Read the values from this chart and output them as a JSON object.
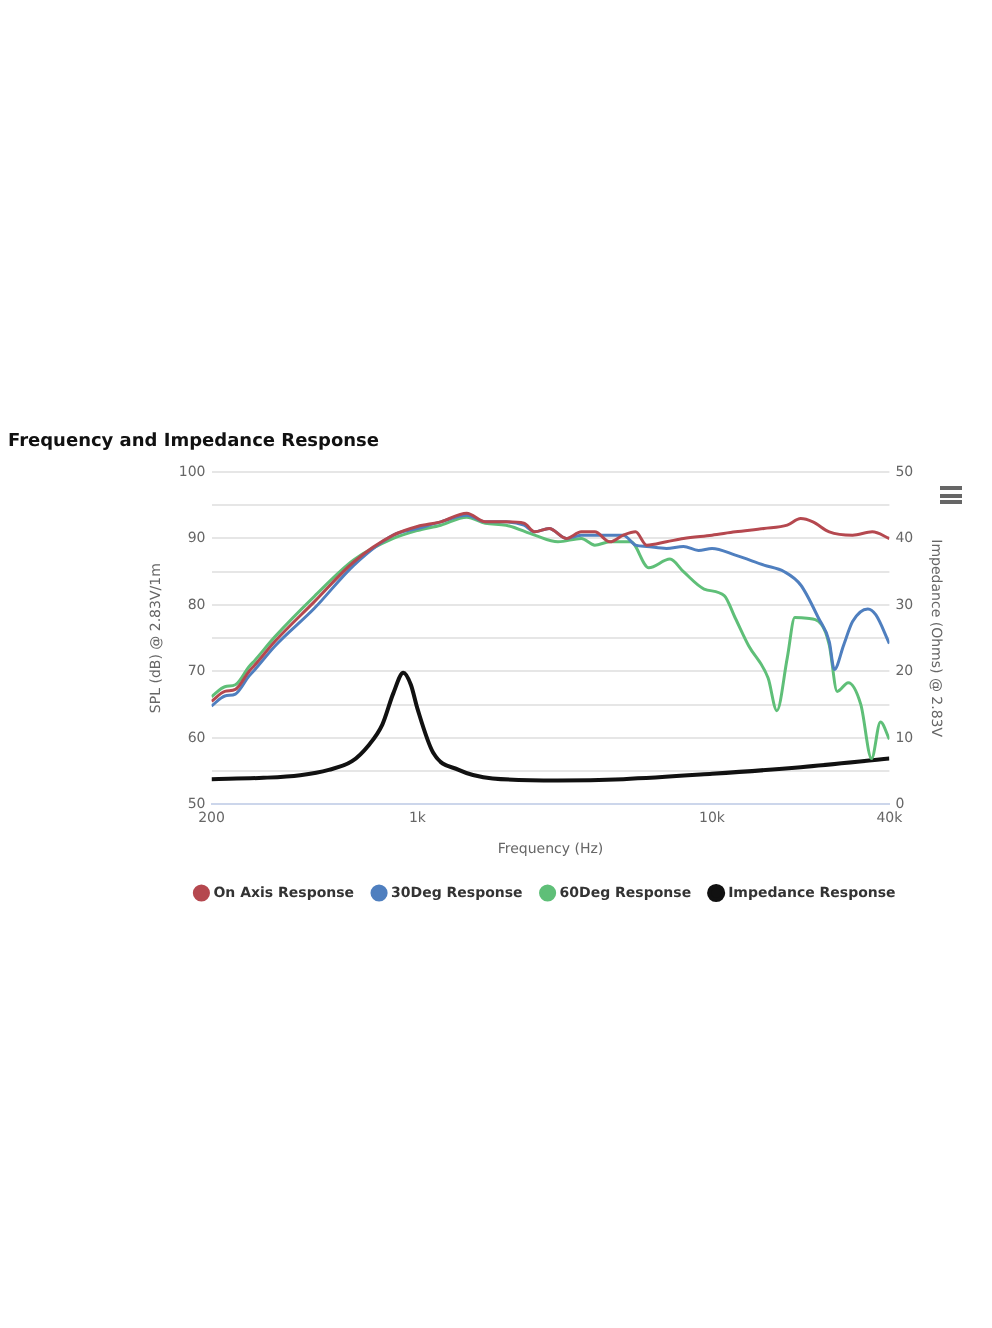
{
  "chart_data": {
    "type": "line",
    "title": "Frequency and Impedance Response",
    "xlabel": "Frequency (Hz)",
    "ylabel": "SPL (dB) @ 2.83V/1m",
    "y2label": "Impedance (Ohms) @ 2.83V",
    "log": "x",
    "xlim": [
      200,
      40000
    ],
    "xticks": [
      200,
      {
        "value": 1000,
        "label": "1k"
      },
      {
        "value": 10000,
        "label": "10k"
      },
      {
        "value": 40000,
        "label": "40k"
      }
    ],
    "ylim": [
      50,
      100
    ],
    "yticks": [
      50,
      {
        "value": 55,
        "label": null
      },
      60,
      {
        "value": 65,
        "label": null
      },
      70,
      {
        "value": 75,
        "label": null
      },
      80,
      {
        "value": 85,
        "label": null
      },
      90,
      {
        "value": 95,
        "label": null
      },
      100
    ],
    "y2lim": [
      0,
      50
    ],
    "y2ticks": [
      0,
      10,
      20,
      30,
      40,
      50
    ],
    "grid": "y",
    "legend": "bottom",
    "marker": "none",
    "line_style": "solid",
    "series": [
      {
        "name": "On Axis Response",
        "color": "#b5484f",
        "x": [
          200,
          222,
          241,
          268,
          281,
          328,
          447,
          609,
          828,
          1000,
          1200,
          1470,
          1700,
          2000,
          2300,
          2500,
          2800,
          3200,
          3600,
          4000,
          4500,
          5000,
          5500,
          6000,
          7000,
          8000,
          10000,
          12000,
          15000,
          18000,
          20000,
          22000,
          25000,
          30000,
          35000,
          40000
        ],
        "values": [
          65.5,
          67,
          67.3,
          70,
          71,
          74.5,
          80.5,
          86.5,
          90.5,
          91.8,
          92.5,
          93.8,
          92.5,
          92.5,
          92.3,
          91,
          91.5,
          90,
          91,
          91,
          89.5,
          90.5,
          91,
          89,
          89.5,
          90,
          90.5,
          91,
          91.5,
          92,
          93,
          92.5,
          91,
          90.5,
          91,
          90
        ]
      },
      {
        "name": "30Deg Response",
        "color": "#4f7fbf",
        "x": [
          200,
          222,
          241,
          268,
          281,
          328,
          447,
          609,
          828,
          1000,
          1200,
          1470,
          1700,
          2000,
          2300,
          2500,
          2800,
          3200,
          3600,
          4000,
          5000,
          5500,
          6000,
          7000,
          8000,
          9000,
          10000,
          12000,
          15000,
          17600,
          20000,
          23000,
          25000,
          26000,
          28000,
          30000,
          33800,
          36000,
          40000
        ],
        "values": [
          64.8,
          66.3,
          66.6,
          69.3,
          70.3,
          73.8,
          79.5,
          86,
          90.5,
          91.5,
          92.5,
          93.5,
          92.5,
          92.5,
          92,
          91,
          91.5,
          90,
          90.5,
          90.5,
          90.5,
          89,
          88.8,
          88.5,
          88.8,
          88.2,
          88.5,
          87.5,
          86,
          85,
          83,
          78,
          74.5,
          70.3,
          74,
          77.5,
          79.4,
          78.5,
          74.2
        ]
      },
      {
        "name": "60Deg Response",
        "color": "#5fbf78",
        "x": [
          200,
          222,
          241,
          268,
          281,
          328,
          447,
          609,
          828,
          1000,
          1200,
          1470,
          1700,
          2000,
          2500,
          3000,
          3600,
          4000,
          4500,
          5300,
          6100,
          7200,
          8000,
          9400,
          11000,
          12000,
          13300,
          15500,
          16600,
          18000,
          19100,
          21000,
          23500,
          25000,
          26600,
          29000,
          32000,
          34800,
          37300,
          40000
        ],
        "values": [
          66.2,
          67.7,
          68,
          70.7,
          71.7,
          75.2,
          81.3,
          86.8,
          90,
          91.2,
          92,
          93.2,
          92.3,
          92,
          90.5,
          89.5,
          90,
          89,
          89.5,
          89.5,
          85.6,
          86.9,
          85,
          82.4,
          81.4,
          78,
          73.9,
          69,
          64.1,
          72,
          78.1,
          78,
          77.1,
          74,
          67,
          68.3,
          65,
          56.9,
          62.4,
          59.8
        ]
      },
      {
        "name": "Impedance Response",
        "color": "#111111",
        "axis": "y2",
        "x": [
          200,
          300,
          400,
          500,
          600,
          680,
          760,
          828,
          896,
          950,
          1000,
          1130,
          1380,
          1800,
          3000,
          5000,
          10000,
          20000,
          40000
        ],
        "values": [
          3.8,
          4,
          4.4,
          5.2,
          6.5,
          8.8,
          12,
          16.7,
          19.8,
          18,
          14.4,
          7.8,
          5.2,
          3.9,
          3.6,
          3.8,
          4.6,
          5.6,
          6.9
        ]
      }
    ]
  }
}
